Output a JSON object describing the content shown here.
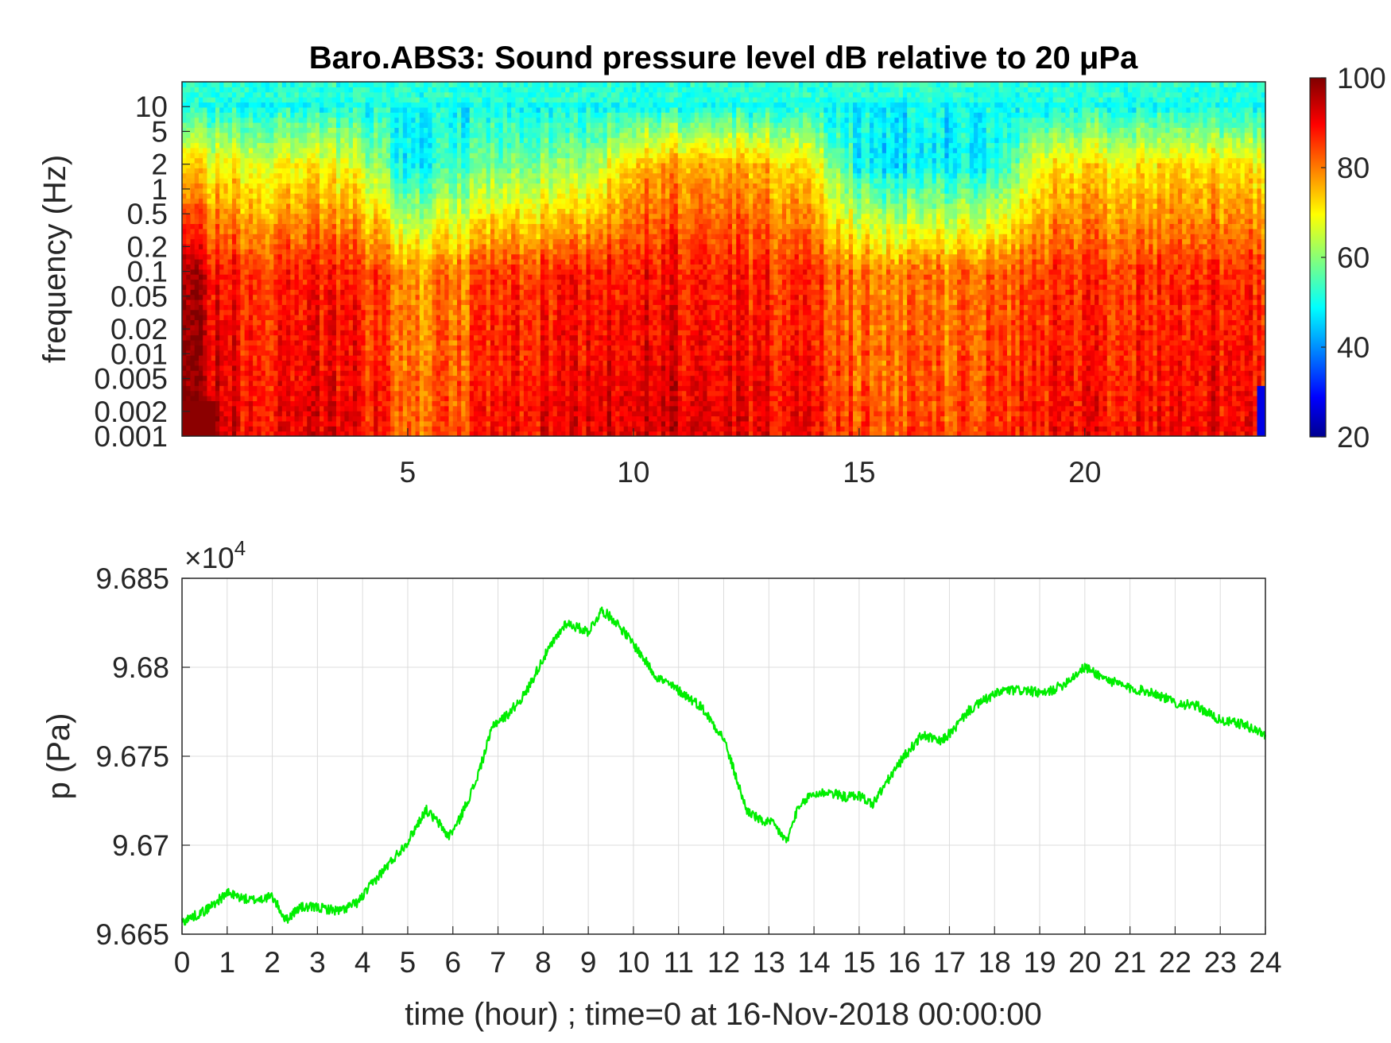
{
  "title": "Baro.ABS3: Sound pressure level dB relative to 20 μPa",
  "colorbar": {
    "ticks": [
      "100",
      "80",
      "60",
      "40",
      "20"
    ],
    "colors": [
      "#00008f",
      "#0000ff",
      "#00ffff",
      "#ffff00",
      "#ff0000",
      "#800000"
    ]
  },
  "chart_data": [
    {
      "type": "heatmap",
      "title": "Baro.ABS3: Sound pressure level dB relative to 20 μPa",
      "ylabel": "frequency (Hz)",
      "y_scale": "log",
      "ylim": [
        0.001,
        20
      ],
      "xlim": [
        0,
        24
      ],
      "x_ticks": [
        "5",
        "10",
        "15",
        "20"
      ],
      "y_ticks": [
        "10",
        "5",
        "2",
        "1",
        "0.5",
        "0.2",
        "0.1",
        "0.05",
        "0.02",
        "0.01",
        "0.005",
        "0.002",
        "0.001"
      ],
      "clim": [
        20,
        100
      ],
      "colormap": "jet",
      "time_hours": [
        0,
        1,
        2,
        3,
        4,
        5,
        6,
        7,
        8,
        9,
        10,
        11,
        12,
        13,
        14,
        15,
        16,
        17,
        18,
        19,
        20,
        21,
        22,
        23,
        24
      ],
      "upper_band_db": [
        72,
        70,
        69,
        70,
        66,
        48,
        54,
        58,
        60,
        62,
        75,
        77,
        77,
        75,
        70,
        50,
        48,
        49,
        50,
        70,
        72,
        72,
        73,
        72,
        72
      ],
      "low_band_db": [
        96,
        88,
        86,
        88,
        86,
        78,
        80,
        85,
        86,
        88,
        89,
        89,
        88,
        87,
        86,
        80,
        80,
        80,
        82,
        86,
        86,
        86,
        87,
        87,
        87
      ],
      "top_band_db": 53
    },
    {
      "type": "line",
      "xlabel": "time (hour) ; time=0 at 16-Nov-2018 00:00:00",
      "ylabel": "p (Pa)",
      "y_multiplier": "×10",
      "y_multiplier_exp": "4",
      "xlim": [
        0,
        24
      ],
      "ylim": [
        9.665,
        9.685
      ],
      "x_ticks": [
        "0",
        "1",
        "2",
        "3",
        "4",
        "5",
        "6",
        "7",
        "8",
        "9",
        "10",
        "11",
        "12",
        "13",
        "14",
        "15",
        "16",
        "17",
        "18",
        "19",
        "20",
        "21",
        "22",
        "23",
        "24"
      ],
      "y_ticks": [
        "9.665",
        "9.67",
        "9.675",
        "9.68",
        "9.685"
      ],
      "grid": true,
      "series": [
        {
          "color": "#00ee00",
          "x": [
            0,
            0.5,
            1.0,
            1.5,
            2.0,
            2.3,
            2.6,
            3.0,
            3.5,
            3.9,
            4.2,
            4.6,
            5.0,
            5.4,
            5.7,
            5.9,
            6.1,
            6.5,
            6.9,
            7.2,
            7.6,
            8.0,
            8.5,
            9.0,
            9.3,
            9.6,
            10.0,
            10.5,
            11.0,
            11.5,
            12.0,
            12.5,
            12.8,
            13.1,
            13.4,
            13.6,
            13.9,
            14.3,
            14.7,
            15.0,
            15.3,
            15.6,
            16.0,
            16.4,
            16.8,
            17.1,
            17.4,
            17.8,
            18.2,
            18.7,
            19.1,
            19.5,
            20.0,
            20.5,
            21.0,
            21.5,
            22.0,
            22.5,
            23.0,
            23.5,
            24.0
          ],
          "y": [
            9.6657,
            9.6663,
            9.6673,
            9.6669,
            9.6671,
            9.6658,
            9.6665,
            9.6665,
            9.6663,
            9.6668,
            9.6678,
            9.669,
            9.6702,
            9.672,
            9.6712,
            9.6705,
            9.6712,
            9.6735,
            9.6768,
            9.6773,
            9.6785,
            9.6805,
            9.6825,
            9.682,
            9.6832,
            9.6826,
            9.6813,
            9.6795,
            9.6787,
            9.6778,
            9.676,
            9.672,
            9.6714,
            9.6712,
            9.6702,
            9.6718,
            9.6728,
            9.673,
            9.6727,
            9.6728,
            9.6723,
            9.6735,
            9.675,
            9.6762,
            9.6758,
            9.6765,
            9.6775,
            9.6782,
            9.6787,
            9.6787,
            9.6785,
            9.679,
            9.68,
            9.6793,
            9.6788,
            9.6786,
            9.678,
            9.6778,
            9.677,
            9.6768,
            9.6762
          ]
        }
      ]
    }
  ]
}
